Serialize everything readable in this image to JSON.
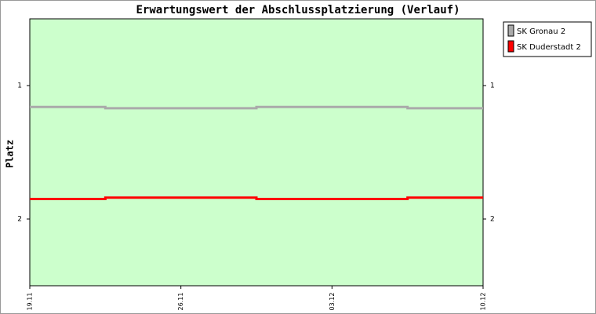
{
  "chart_data": {
    "type": "line",
    "drawstyle": "steps-mid",
    "title": "Erwartungswert der Abschlussplatzierung (Verlauf)",
    "y_label": "Platz",
    "categories": [
      "19.11",
      "26.11",
      "03.12",
      "10.12"
    ],
    "series": [
      {
        "name": "SK Gronau 2",
        "color": "#aaaaaa",
        "values": [
          1.16,
          1.17,
          1.16,
          1.17
        ]
      },
      {
        "name": "SK Duderstadt 2",
        "color": "#ff0000",
        "values": [
          1.85,
          1.84,
          1.85,
          1.84
        ]
      }
    ],
    "ylim": [
      2.5,
      0.5
    ],
    "yticks": [
      1,
      2
    ],
    "plot_background": "#ccffcc",
    "legend": "outside-right"
  }
}
